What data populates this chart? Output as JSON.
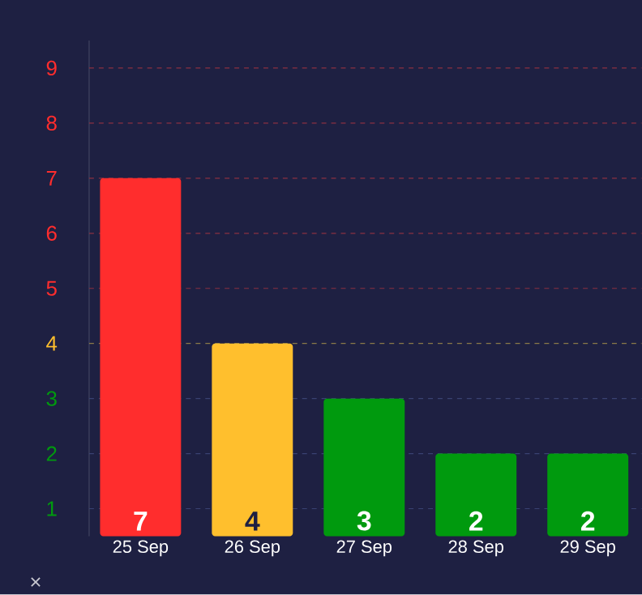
{
  "chart_data": {
    "type": "bar",
    "categories": [
      "25 Sep",
      "26 Sep",
      "27 Sep",
      "28 Sep",
      "29 Sep"
    ],
    "values": [
      7,
      4,
      3,
      2,
      2
    ],
    "colors": [
      "#ff2d2d",
      "#ffbf2d",
      "#009a0e",
      "#009a0e",
      "#009a0e"
    ],
    "ylim": [
      0.5,
      9.5
    ],
    "yticks": [
      1,
      2,
      3,
      4,
      5,
      6,
      7,
      8,
      9
    ],
    "ref_lines": [
      {
        "axis": "y",
        "value": 1,
        "color": "#3a4272",
        "line_style": "dashed"
      },
      {
        "axis": "y",
        "value": 2,
        "color": "#3a4272",
        "line_style": "dashed"
      },
      {
        "axis": "y",
        "value": 3,
        "color": "#3a4272",
        "line_style": "dashed"
      },
      {
        "axis": "y",
        "value": 4,
        "color": "#8a7a48",
        "line_style": "dashed"
      },
      {
        "axis": "y",
        "value": 5,
        "color": "#8a3042",
        "line_style": "dashed"
      },
      {
        "axis": "y",
        "value": 6,
        "color": "#8a3042",
        "line_style": "dashed"
      },
      {
        "axis": "y",
        "value": 7,
        "color": "#8a3042",
        "line_style": "dashed"
      },
      {
        "axis": "y",
        "value": 8,
        "color": "#8a3042",
        "line_style": "dashed"
      },
      {
        "axis": "y",
        "value": 9,
        "color": "#8a3042",
        "line_style": "dashed"
      }
    ],
    "data_labels": true,
    "annotations": [
      "×"
    ]
  }
}
